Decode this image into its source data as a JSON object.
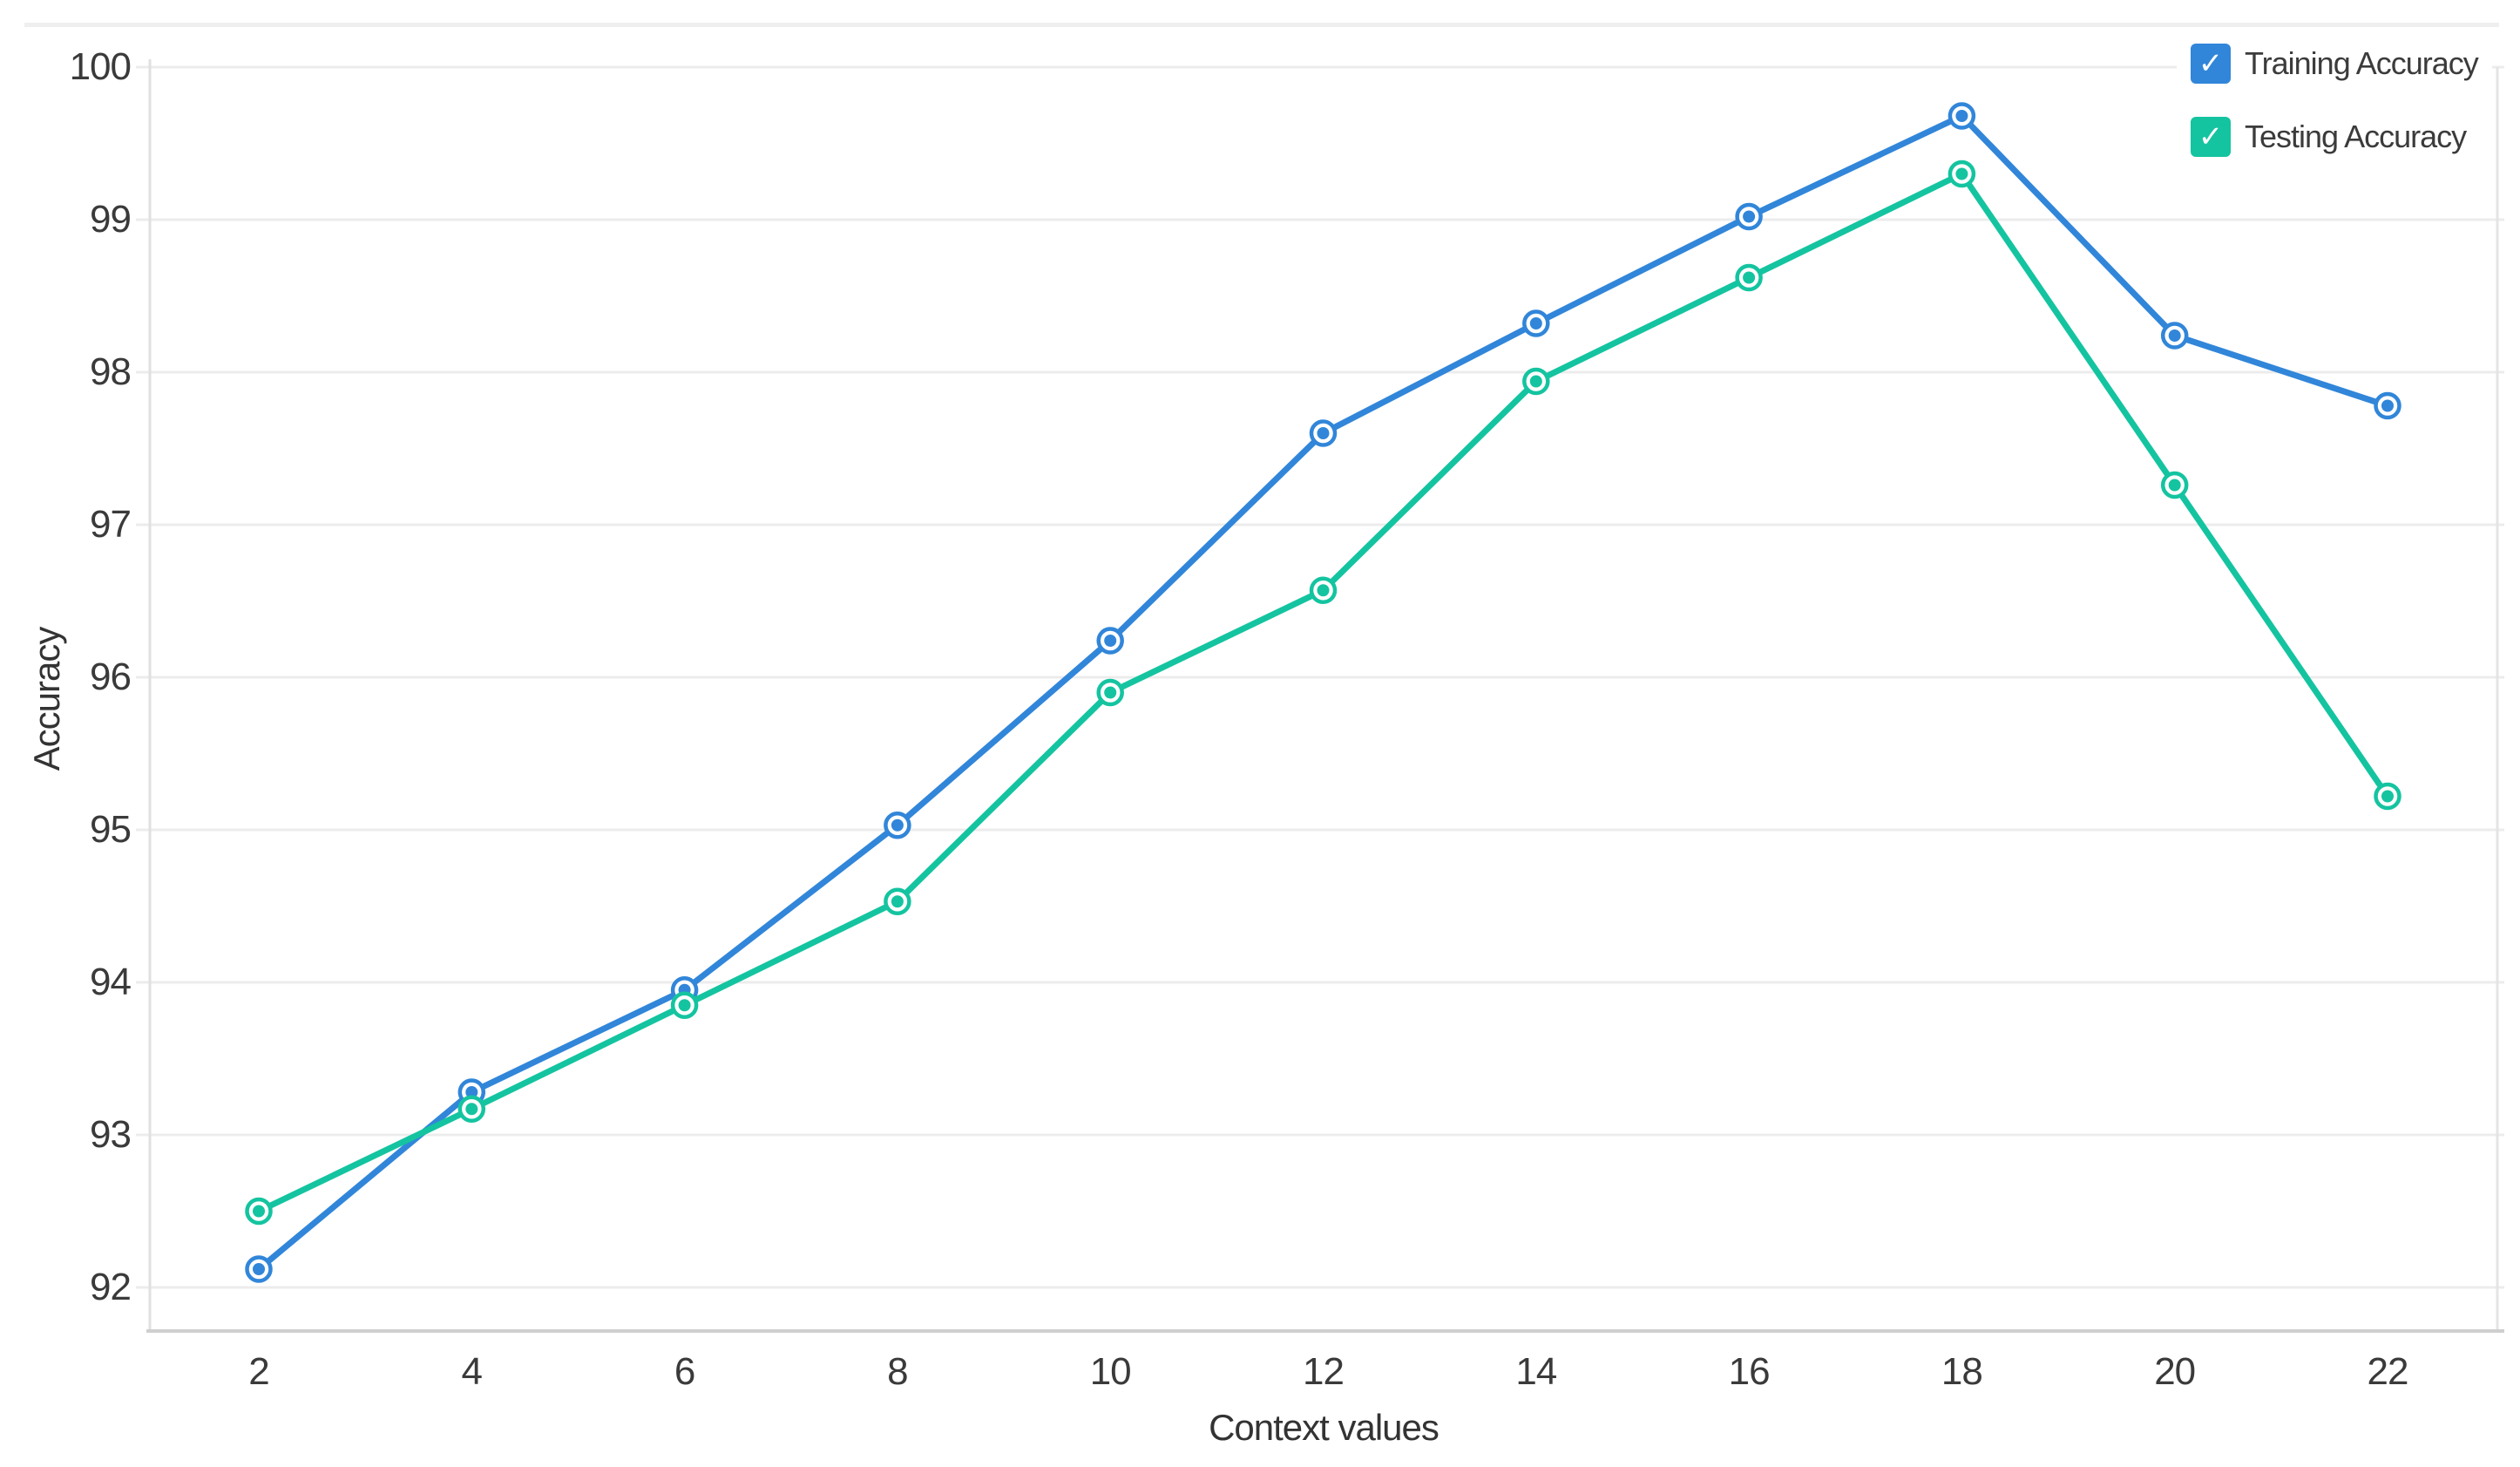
{
  "chart_data": {
    "type": "line",
    "title": "",
    "xlabel": "Context values",
    "ylabel": "Accuracy",
    "x": [
      2,
      4,
      6,
      8,
      10,
      12,
      14,
      16,
      18,
      20,
      22
    ],
    "y_ticks": [
      100,
      99,
      98,
      97,
      96,
      95,
      94,
      93,
      92
    ],
    "ylim": [
      91.72,
      100.28
    ],
    "grid": true,
    "legend_position": "top-right",
    "series": [
      {
        "name": "Training Accuracy",
        "color": "#3186d9",
        "values": [
          92.12,
          93.28,
          93.95,
          95.03,
          96.24,
          97.6,
          98.32,
          99.02,
          99.68,
          98.24,
          97.78
        ]
      },
      {
        "name": "Testing Accuracy",
        "color": "#14c4a0",
        "values": [
          92.5,
          93.17,
          93.85,
          94.53,
          95.9,
          96.57,
          97.94,
          98.62,
          99.3,
          97.26,
          95.22
        ]
      }
    ]
  },
  "legend": {
    "checkmark": "✓",
    "items": [
      {
        "label": "Training Accuracy",
        "color": "#3186d9",
        "checked": true,
        "icon": "checkmark-icon"
      },
      {
        "label": "Testing Accuracy",
        "color": "#14c4a0",
        "checked": true,
        "icon": "checkmark-icon"
      }
    ]
  }
}
